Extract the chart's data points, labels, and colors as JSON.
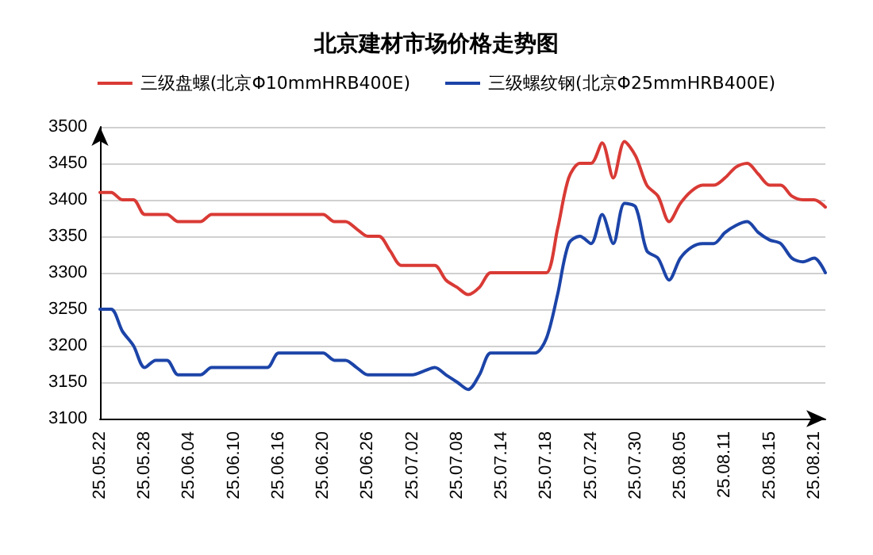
{
  "chart_data": {
    "type": "line",
    "title": "北京建材市场价格走势图",
    "categories": [
      "25.05.22",
      null,
      null,
      null,
      "25.05.28",
      null,
      null,
      null,
      "25.06.04",
      null,
      null,
      null,
      "25.06.10",
      null,
      null,
      null,
      "25.06.16",
      null,
      null,
      null,
      "25.06.20",
      null,
      null,
      null,
      "25.06.26",
      null,
      null,
      null,
      "25.07.02",
      null,
      null,
      null,
      "25.07.08",
      null,
      null,
      null,
      "25.07.14",
      null,
      null,
      null,
      "25.07.18",
      null,
      null,
      null,
      "25.07.24",
      null,
      null,
      null,
      "25.07.30",
      null,
      null,
      null,
      "25.08.05",
      null,
      null,
      null,
      "25.08.11",
      null,
      null,
      null,
      "25.08.15",
      null,
      null,
      null,
      "25.08.21",
      null
    ],
    "series": [
      {
        "name": "三级盘螺(北京Φ10mmHRB400E)",
        "color": "#d93a35",
        "values": [
          3410,
          3410,
          3400,
          3400,
          3380,
          3380,
          3380,
          3370,
          3370,
          3370,
          3380,
          3380,
          3380,
          3380,
          3380,
          3380,
          3380,
          3380,
          3380,
          3380,
          3380,
          3370,
          3370,
          3360,
          3350,
          3350,
          3330,
          3310,
          3310,
          3310,
          3310,
          3290,
          3280,
          3270,
          3280,
          3300,
          3300,
          3300,
          3300,
          3300,
          3300,
          3360,
          3430,
          3450,
          3450,
          3478,
          3430,
          3480,
          3460,
          3420,
          3405,
          3370,
          3395,
          3412,
          3420,
          3420,
          3430,
          3445,
          3450,
          3435,
          3420,
          3420,
          3405,
          3400,
          3400,
          3390
        ]
      },
      {
        "name": "三级螺纹钢(北京Φ25mmHRB400E)",
        "color": "#1c44a8",
        "values": [
          3250,
          3250,
          3220,
          3200,
          3170,
          3180,
          3180,
          3160,
          3160,
          3160,
          3170,
          3170,
          3170,
          3170,
          3170,
          3170,
          3190,
          3190,
          3190,
          3190,
          3190,
          3180,
          3180,
          3170,
          3160,
          3160,
          3160,
          3160,
          3160,
          3165,
          3170,
          3160,
          3150,
          3140,
          3160,
          3190,
          3190,
          3190,
          3190,
          3190,
          3210,
          3270,
          3340,
          3350,
          3340,
          3380,
          3340,
          3395,
          3390,
          3330,
          3320,
          3290,
          3320,
          3335,
          3340,
          3340,
          3355,
          3365,
          3370,
          3355,
          3345,
          3340,
          3320,
          3315,
          3320,
          3300
        ]
      }
    ],
    "ylim": [
      3100,
      3500
    ],
    "yticks": [
      3100,
      3150,
      3200,
      3250,
      3300,
      3350,
      3400,
      3450,
      3500
    ],
    "grid": "y",
    "legend": "top",
    "marker": "none",
    "line_style": "solid"
  }
}
